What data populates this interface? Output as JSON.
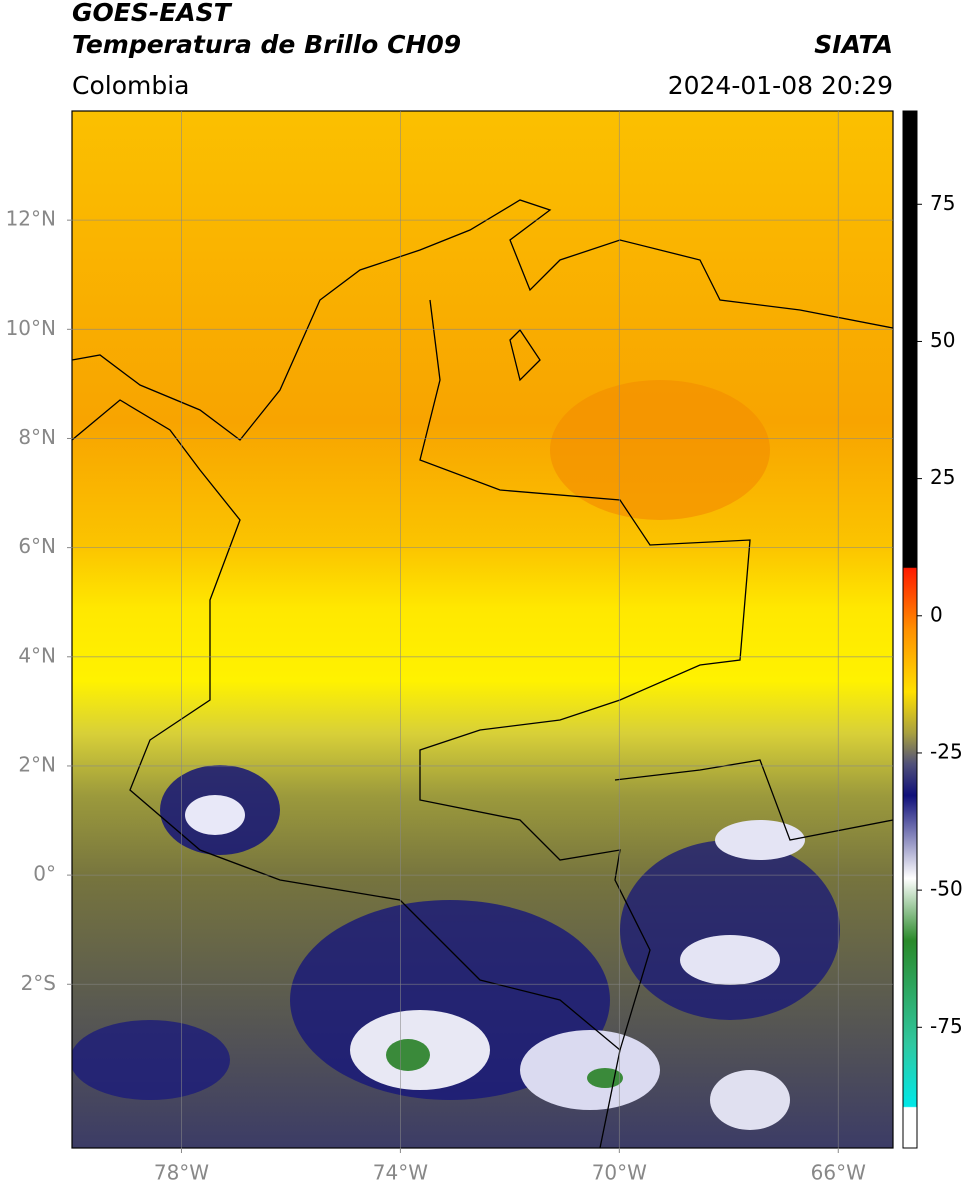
{
  "header": {
    "title": "GOES-EAST",
    "subtitle": "Temperatura de Brillo CH09",
    "source": "SIATA",
    "region": "Colombia",
    "datetime": "2024-01-08 20:29"
  },
  "map": {
    "xlim": [
      -80,
      -65
    ],
    "ylim": [
      -5,
      14
    ],
    "xticks": [
      {
        "value": -78,
        "label": "78°W"
      },
      {
        "value": -74,
        "label": "74°W"
      },
      {
        "value": -70,
        "label": "70°W"
      },
      {
        "value": -66,
        "label": "66°W"
      }
    ],
    "yticks": [
      {
        "value": 12,
        "label": "12°N"
      },
      {
        "value": 10,
        "label": "10°N"
      },
      {
        "value": 8,
        "label": "8°N"
      },
      {
        "value": 6,
        "label": "6°N"
      },
      {
        "value": 4,
        "label": "4°N"
      },
      {
        "value": 2,
        "label": "2°N"
      },
      {
        "value": 0,
        "label": "0°"
      },
      {
        "value": -2,
        "label": "2°S"
      }
    ],
    "grid": true
  },
  "colorbar": {
    "lim": [
      -97,
      92
    ],
    "ticks": [
      75,
      50,
      25,
      0,
      -25,
      -50,
      -75
    ]
  }
}
